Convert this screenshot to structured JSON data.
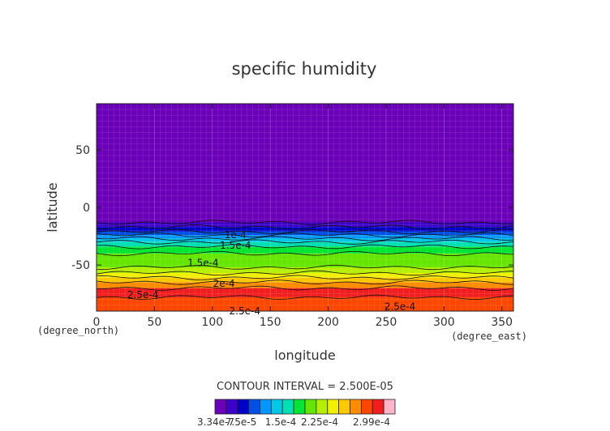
{
  "chart_data": {
    "type": "heatmap",
    "title": "specific humidity",
    "xlabel": "longitude",
    "ylabel": "latitude",
    "x_unit_label": "(degree_east)",
    "y_unit_label": "(degree_north)",
    "xlim": [
      0,
      360
    ],
    "ylim": [
      -90,
      90
    ],
    "x_ticks": [
      0,
      50,
      100,
      150,
      200,
      250,
      300,
      350
    ],
    "y_ticks": [
      50,
      0,
      -50
    ],
    "contour_interval_text": "CONTOUR INTERVAL = 2.500E-05",
    "colorbar_labels": [
      "3.34e-7",
      "7.5e-5",
      "1.5e-4",
      "2.25e-4",
      "2.99e-4"
    ],
    "colorbar_colors": [
      "#6a00b8",
      "#3c00c8",
      "#0000c8",
      "#0050e6",
      "#0096ff",
      "#00c8e6",
      "#00e0b4",
      "#00e632",
      "#64e600",
      "#b4f000",
      "#f0f000",
      "#ffc800",
      "#ff8c00",
      "#ff4600",
      "#f01e1e",
      "#ffb4c8"
    ],
    "latitude_bands": [
      {
        "lat_from": 90,
        "lat_to": -13,
        "color": "#6a00b8"
      },
      {
        "lat_from": -13,
        "lat_to": -17,
        "color": "#3c00c8"
      },
      {
        "lat_from": -17,
        "lat_to": -21,
        "color": "#0000c8"
      },
      {
        "lat_from": -21,
        "lat_to": -24,
        "color": "#0050e6"
      },
      {
        "lat_from": -24,
        "lat_to": -27,
        "color": "#0096ff"
      },
      {
        "lat_from": -27,
        "lat_to": -30,
        "color": "#00c8e6"
      },
      {
        "lat_from": -30,
        "lat_to": -34,
        "color": "#00e0b4"
      },
      {
        "lat_from": -34,
        "lat_to": -40,
        "color": "#00e632"
      },
      {
        "lat_from": -40,
        "lat_to": -52,
        "color": "#64e600"
      },
      {
        "lat_from": -52,
        "lat_to": -57,
        "color": "#b4f000"
      },
      {
        "lat_from": -57,
        "lat_to": -61,
        "color": "#f0f000"
      },
      {
        "lat_from": -61,
        "lat_to": -65,
        "color": "#ffc800"
      },
      {
        "lat_from": -65,
        "lat_to": -70,
        "color": "#ff8c00"
      },
      {
        "lat_from": -70,
        "lat_to": -78,
        "color": "#f01e1e"
      },
      {
        "lat_from": -78,
        "lat_to": -90,
        "color": "#ff4600"
      }
    ],
    "contour_labels": [
      {
        "text": "1e-4",
        "lon": 120,
        "lat": -24
      },
      {
        "text": "1.5e-4",
        "lon": 120,
        "lat": -33
      },
      {
        "text": "1.5e-4",
        "lon": 92,
        "lat": -48
      },
      {
        "text": "2e-4",
        "lon": 110,
        "lat": -66
      },
      {
        "text": "2.5e-4",
        "lon": 40,
        "lat": -76
      },
      {
        "text": "2.5e-4",
        "lon": 262,
        "lat": -86
      },
      {
        "text": "2.5e-4",
        "lon": 128,
        "lat": -90
      }
    ]
  }
}
